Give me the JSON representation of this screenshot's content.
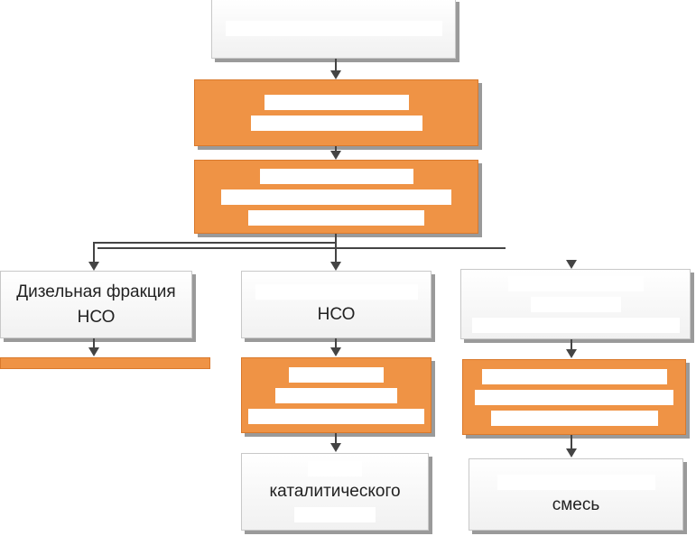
{
  "nodes": {
    "left_product": {
      "line1": "Дизельная фракция",
      "line2": "НСО"
    },
    "middle_product": {
      "line2": "НСО"
    },
    "middle_bottom": {
      "line2": "каталитического"
    },
    "right_bottom": {
      "line2": "смесь"
    }
  },
  "colors": {
    "process": "#ef9345",
    "product": "#ffffff",
    "connector": "#444444"
  }
}
